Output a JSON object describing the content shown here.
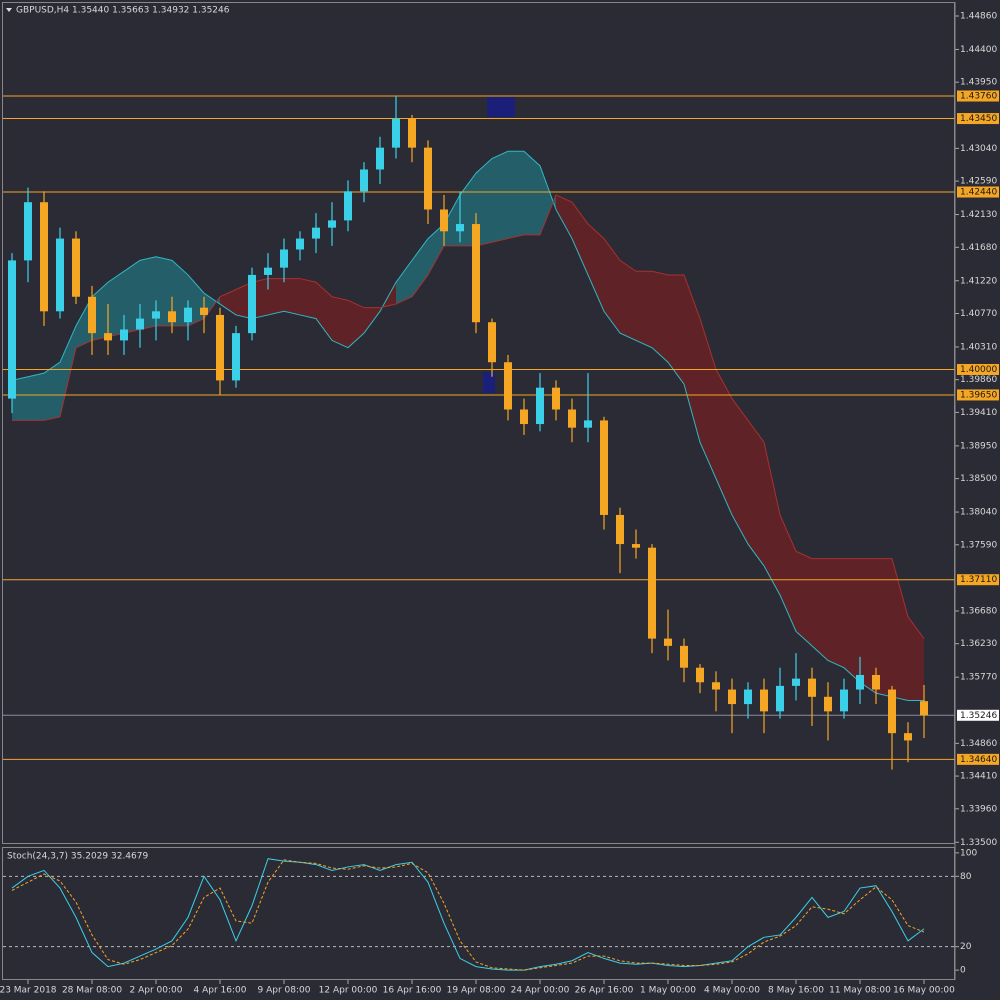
{
  "chart_data": [
    {
      "type": "candlestick",
      "title": "GBPUSD,H4  1.35440 1.35663 1.34932 1.35246",
      "categories": [
        null,
        "23 Mar 2018",
        null,
        null,
        null,
        "28 Mar 08:00",
        null,
        null,
        null,
        "2 Apr 00:00",
        null,
        null,
        null,
        "4 Apr 16:00",
        null,
        null,
        null,
        "9 Apr 08:00",
        null,
        null,
        null,
        "12 Apr 00:00",
        null,
        null,
        null,
        "16 Apr 16:00",
        null,
        null,
        null,
        "19 Apr 08:00",
        null,
        null,
        null,
        "24 Apr 00:00",
        null,
        null,
        null,
        "26 Apr 16:00",
        null,
        null,
        null,
        "1 May 00:00",
        null,
        null,
        null,
        "4 May 00:00",
        null,
        null,
        null,
        "8 May 16:00",
        null,
        null,
        null,
        "11 May 08:00",
        null,
        null,
        null,
        "16 May 00:00"
      ],
      "candles": [
        [
          1.396,
          1.416,
          1.394,
          1.415
        ],
        [
          1.415,
          1.425,
          1.412,
          1.423
        ],
        [
          1.423,
          1.4245,
          1.406,
          1.408
        ],
        [
          1.408,
          1.4195,
          1.407,
          1.418
        ],
        [
          1.418,
          1.419,
          1.409,
          1.41
        ],
        [
          1.41,
          1.4115,
          1.402,
          1.405
        ],
        [
          1.405,
          1.409,
          1.402,
          1.404
        ],
        [
          1.404,
          1.4075,
          1.402,
          1.4055
        ],
        [
          1.4055,
          1.409,
          1.403,
          1.407
        ],
        [
          1.407,
          1.4095,
          1.404,
          1.408
        ],
        [
          1.408,
          1.41,
          1.405,
          1.4065
        ],
        [
          1.4065,
          1.4095,
          1.404,
          1.4085
        ],
        [
          1.4085,
          1.41,
          1.405,
          1.4075
        ],
        [
          1.4075,
          1.4085,
          1.3965,
          1.3985
        ],
        [
          1.3985,
          1.406,
          1.3975,
          1.405
        ],
        [
          1.405,
          1.414,
          1.404,
          1.413
        ],
        [
          1.413,
          1.416,
          1.411,
          1.414
        ],
        [
          1.414,
          1.418,
          1.412,
          1.4165
        ],
        [
          1.4165,
          1.419,
          1.415,
          1.418
        ],
        [
          1.418,
          1.4215,
          1.416,
          1.4195
        ],
        [
          1.4195,
          1.423,
          1.417,
          1.4205
        ],
        [
          1.4205,
          1.426,
          1.419,
          1.4245
        ],
        [
          1.4245,
          1.4285,
          1.423,
          1.4275
        ],
        [
          1.4275,
          1.432,
          1.4255,
          1.4305
        ],
        [
          1.4305,
          1.4376,
          1.429,
          1.4345
        ],
        [
          1.4345,
          1.435,
          1.4285,
          1.4305
        ],
        [
          1.4305,
          1.4315,
          1.42,
          1.422
        ],
        [
          1.422,
          1.424,
          1.417,
          1.419
        ],
        [
          1.419,
          1.4245,
          1.4175,
          1.42
        ],
        [
          1.42,
          1.4215,
          1.405,
          1.4065
        ],
        [
          1.4065,
          1.407,
          1.399,
          1.401
        ],
        [
          1.401,
          1.402,
          1.393,
          1.3945
        ],
        [
          1.3945,
          1.396,
          1.391,
          1.3925
        ],
        [
          1.3925,
          1.3995,
          1.3915,
          1.3975
        ],
        [
          1.3975,
          1.3985,
          1.393,
          1.3945
        ],
        [
          1.3945,
          1.396,
          1.39,
          1.392
        ],
        [
          1.392,
          1.3995,
          1.39,
          1.393
        ],
        [
          1.393,
          1.3935,
          1.378,
          1.38
        ],
        [
          1.38,
          1.381,
          1.372,
          1.376
        ],
        [
          1.376,
          1.378,
          1.374,
          1.3755
        ],
        [
          1.3755,
          1.376,
          1.361,
          1.363
        ],
        [
          1.363,
          1.367,
          1.36,
          1.362
        ],
        [
          1.362,
          1.363,
          1.357,
          1.359
        ],
        [
          1.359,
          1.3595,
          1.3555,
          1.357
        ],
        [
          1.357,
          1.3585,
          1.353,
          1.356
        ],
        [
          1.356,
          1.3575,
          1.35,
          1.354
        ],
        [
          1.354,
          1.357,
          1.352,
          1.356
        ],
        [
          1.356,
          1.3575,
          1.35,
          1.353
        ],
        [
          1.353,
          1.359,
          1.352,
          1.3565
        ],
        [
          1.3565,
          1.361,
          1.3545,
          1.3575
        ],
        [
          1.3575,
          1.359,
          1.351,
          1.355
        ],
        [
          1.355,
          1.357,
          1.349,
          1.353
        ],
        [
          1.353,
          1.3575,
          1.352,
          1.356
        ],
        [
          1.356,
          1.3605,
          1.354,
          1.358
        ],
        [
          1.358,
          1.359,
          1.354,
          1.356
        ],
        [
          1.356,
          1.3565,
          1.345,
          1.35
        ],
        [
          1.35,
          1.3515,
          1.346,
          1.349
        ],
        [
          1.3544,
          1.35663,
          1.34932,
          1.35246
        ]
      ],
      "up_color": "#3ad0e8",
      "down_color": "#f5a623",
      "ylim": [
        1.3349,
        1.4497
      ],
      "yticks": [
        {
          "value": 1.4486,
          "label": "1.44860"
        },
        {
          "value": 1.444,
          "label": "1.44400"
        },
        {
          "value": 1.4395,
          "label": "1.43950"
        },
        {
          "value": 1.4304,
          "label": "1.43040"
        },
        {
          "value": 1.4259,
          "label": "1.42590"
        },
        {
          "value": 1.4213,
          "label": "1.42130"
        },
        {
          "value": 1.4168,
          "label": "1.41680"
        },
        {
          "value": 1.4122,
          "label": "1.41220"
        },
        {
          "value": 1.4077,
          "label": "1.40770"
        },
        {
          "value": 1.4031,
          "label": "1.40310"
        },
        {
          "value": 1.3986,
          "label": "1.39860"
        },
        {
          "value": 1.3941,
          "label": "1.39410"
        },
        {
          "value": 1.3895,
          "label": "1.38950"
        },
        {
          "value": 1.385,
          "label": "1.38500"
        },
        {
          "value": 1.3804,
          "label": "1.38040"
        },
        {
          "value": 1.3759,
          "label": "1.37590"
        },
        {
          "value": 1.3668,
          "label": "1.36680"
        },
        {
          "value": 1.3623,
          "label": "1.36230"
        },
        {
          "value": 1.3577,
          "label": "1.35770"
        },
        {
          "value": 1.3486,
          "label": "1.34860"
        },
        {
          "value": 1.3441,
          "label": "1.34410"
        },
        {
          "value": 1.3396,
          "label": "1.33960"
        },
        {
          "value": 1.335,
          "label": "1.33500"
        }
      ],
      "levels": [
        {
          "value": 1.4376,
          "label": "1.43760"
        },
        {
          "value": 1.4345,
          "label": "1.43450"
        },
        {
          "value": 1.4244,
          "label": "1.42440"
        },
        {
          "value": 1.4,
          "label": "1.40000"
        },
        {
          "value": 1.3965,
          "label": "1.39650"
        },
        {
          "value": 1.3711,
          "label": "1.37110"
        },
        {
          "value": 1.3464,
          "label": "1.34640"
        }
      ],
      "level_color": "#f5a623",
      "last_price": {
        "value": 1.35246,
        "label": "1.35246"
      },
      "cloud_a": [
        1.3985,
        1.399,
        1.3995,
        1.401,
        1.406,
        1.41,
        1.412,
        1.4135,
        1.415,
        1.4155,
        1.415,
        1.413,
        1.4105,
        1.409,
        1.4075,
        1.407,
        1.4075,
        1.408,
        1.4075,
        1.407,
        1.404,
        1.403,
        1.405,
        1.408,
        1.412,
        1.415,
        1.418,
        1.42,
        1.424,
        1.427,
        1.429,
        1.43,
        1.43,
        1.428,
        1.422,
        1.418,
        1.413,
        1.408,
        1.405,
        1.404,
        1.403,
        1.401,
        1.398,
        1.39,
        1.385,
        1.38,
        1.376,
        1.373,
        1.369,
        1.364,
        1.362,
        1.36,
        1.359,
        1.357,
        1.3555,
        1.355,
        1.3545,
        1.3545
      ],
      "cloud_b": [
        1.393,
        1.393,
        1.393,
        1.3935,
        1.403,
        1.404,
        1.4045,
        1.405,
        1.4055,
        1.406,
        1.406,
        1.406,
        1.407,
        1.41,
        1.411,
        1.412,
        1.4125,
        1.4125,
        1.4125,
        1.412,
        1.41,
        1.4095,
        1.4085,
        1.4085,
        1.409,
        1.41,
        1.413,
        1.417,
        1.417,
        1.417,
        1.4175,
        1.418,
        1.4185,
        1.4185,
        1.424,
        1.423,
        1.42,
        1.418,
        1.415,
        1.4135,
        1.4135,
        1.413,
        1.413,
        1.407,
        1.4,
        1.396,
        1.393,
        1.39,
        1.38,
        1.375,
        1.374,
        1.374,
        1.374,
        1.374,
        1.374,
        1.374,
        1.366,
        1.363
      ],
      "cloud_up_color": "#1f8a94",
      "cloud_down_color": "#8a1c1c"
    },
    {
      "type": "line",
      "title": "Stoch(24,3,7) 35.2029 32.4679",
      "ylim": [
        -5,
        105
      ],
      "yticks": [
        0,
        20,
        80,
        100
      ],
      "levels": [
        20,
        80
      ],
      "series": [
        {
          "color": "#3ad0e8",
          "values": [
            70,
            80,
            85,
            70,
            45,
            15,
            3,
            6,
            12,
            18,
            25,
            45,
            80,
            60,
            25,
            55,
            95,
            93,
            92,
            90,
            85,
            88,
            90,
            85,
            90,
            92,
            75,
            40,
            10,
            3,
            1,
            0,
            0,
            3,
            5,
            8,
            15,
            10,
            6,
            5,
            6,
            4,
            3,
            4,
            6,
            8,
            20,
            28,
            30,
            45,
            62,
            45,
            50,
            70,
            72,
            50,
            25,
            35.2029
          ]
        },
        {
          "color": "#f5a623",
          "values": [
            68,
            75,
            82,
            76,
            58,
            30,
            9,
            5,
            9,
            15,
            21,
            35,
            62,
            70,
            42,
            40,
            75,
            94,
            92,
            91,
            87,
            86,
            89,
            87,
            88,
            91,
            83,
            57,
            25,
            7,
            2,
            1,
            0,
            2,
            4,
            6,
            12,
            12,
            8,
            6,
            6,
            5,
            4,
            4,
            5,
            7,
            14,
            24,
            29,
            38,
            54,
            52,
            48,
            60,
            71,
            60,
            38,
            32.4679
          ]
        }
      ]
    }
  ]
}
